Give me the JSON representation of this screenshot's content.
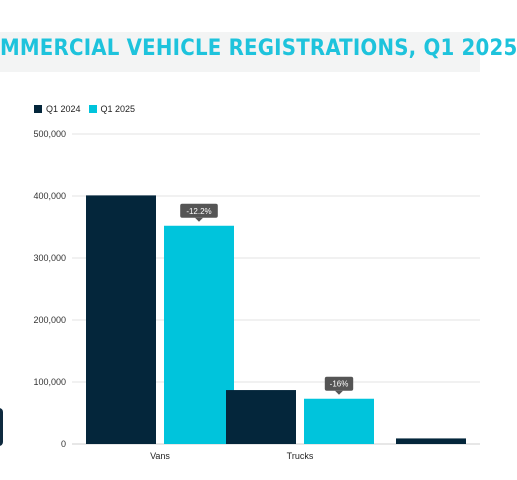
{
  "title": "MMERCIAL VEHICLE REGISTRATIONS, Q1 2025",
  "colors": {
    "q1_2024": "#04263b",
    "q1_2025": "#00c4dc",
    "title": "#1ec3dc",
    "callout": "#555555",
    "grid": "#e3e3e3"
  },
  "chart_data": {
    "type": "bar",
    "title": "MMERCIAL VEHICLE REGISTRATIONS, Q1 2025",
    "xlabel": "",
    "ylabel": "",
    "ylim": [
      0,
      500000
    ],
    "yticks": [
      "0",
      "100,000",
      "200,000",
      "300,000",
      "400,000",
      "500,000"
    ],
    "grid": true,
    "legend_position": "top-left",
    "categories": [
      "Vans",
      "Trucks",
      ""
    ],
    "series": [
      {
        "name": "Q1 2024",
        "values": [
          401000,
          87000,
          9000
        ]
      },
      {
        "name": "Q1 2025",
        "values": [
          352000,
          73000,
          null
        ]
      }
    ],
    "annotations": [
      {
        "category": "Vans",
        "series": "Q1 2025",
        "text": "-12.2%"
      },
      {
        "category": "Trucks",
        "series": "Q1 2025",
        "text": "-16%"
      }
    ]
  }
}
